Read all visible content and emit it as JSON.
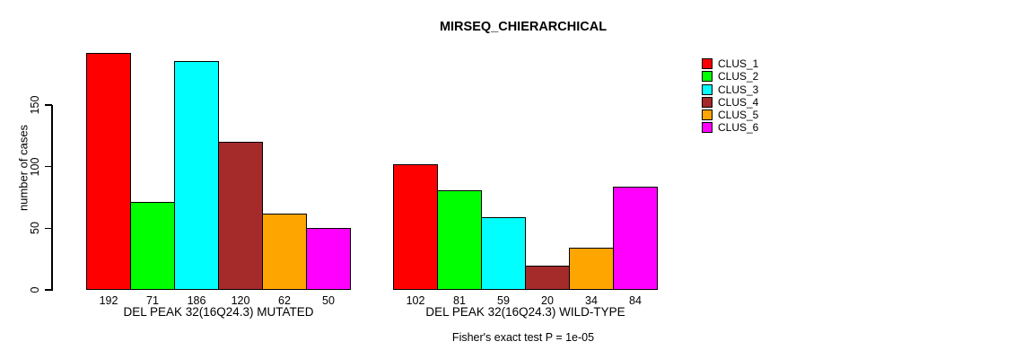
{
  "chart_data": {
    "type": "bar",
    "title": "MIRSEQ_CHIERARCHICAL",
    "xlabel": "",
    "ylabel": "number of cases",
    "yticks": [
      0,
      50,
      100,
      150
    ],
    "grid": false,
    "legend_position": "top-right",
    "bar_value_labels_shown": true,
    "categories": [
      "DEL PEAK 32(16Q24.3) MUTATED",
      "DEL PEAK 32(16Q24.3) WILD-TYPE"
    ],
    "series": [
      {
        "name": "CLUS_1",
        "color": "#FF0000",
        "values": [
          192,
          102
        ]
      },
      {
        "name": "CLUS_2",
        "color": "#00FF00",
        "values": [
          71,
          81
        ]
      },
      {
        "name": "CLUS_3",
        "color": "#00FFFF",
        "values": [
          186,
          59
        ]
      },
      {
        "name": "CLUS_4",
        "color": "#A52A2A",
        "values": [
          120,
          20
        ]
      },
      {
        "name": "CLUS_5",
        "color": "#FFA500",
        "values": [
          62,
          34
        ]
      },
      {
        "name": "CLUS_6",
        "color": "#FF00FF",
        "values": [
          50,
          84
        ]
      }
    ],
    "annotation": "Fisher's exact test P = 1e-05"
  },
  "colors": {
    "background": "#FFFFFF",
    "axis": "#000000",
    "text": "#000000"
  }
}
